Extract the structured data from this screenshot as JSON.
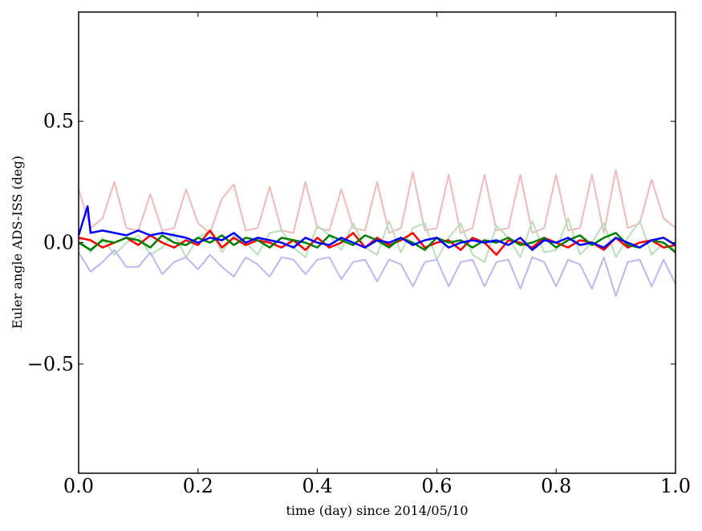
{
  "chart_data": {
    "type": "line",
    "xlabel": "time (day) since 2014/05/10",
    "ylabel": "Euler angle ADS-ISS (deg)",
    "xlim": [
      0.0,
      1.0
    ],
    "ylim": [
      -0.95,
      0.95
    ],
    "x_ticks": [
      "0.0",
      "0.2",
      "0.4",
      "0.6",
      "0.8",
      "1.0"
    ],
    "y_ticks": [
      "−0.5",
      "0.0",
      "0.5"
    ],
    "y_tick_values": [
      -0.5,
      0.0,
      0.5
    ],
    "grid": false,
    "x": [
      0.0,
      0.02,
      0.04,
      0.06,
      0.08,
      0.1,
      0.12,
      0.14,
      0.16,
      0.18,
      0.2,
      0.22,
      0.24,
      0.26,
      0.28,
      0.3,
      0.32,
      0.34,
      0.36,
      0.38,
      0.4,
      0.42,
      0.44,
      0.46,
      0.48,
      0.5,
      0.52,
      0.54,
      0.56,
      0.58,
      0.6,
      0.62,
      0.64,
      0.66,
      0.68,
      0.7,
      0.72,
      0.74,
      0.76,
      0.78,
      0.8,
      0.82,
      0.84,
      0.86,
      0.88,
      0.9,
      0.92,
      0.94,
      0.96,
      0.98,
      1.0
    ],
    "series": [
      {
        "color": "#f4b8b8",
        "width": 2,
        "values": [
          0.22,
          0.06,
          0.1,
          0.25,
          0.06,
          0.05,
          0.2,
          0.05,
          0.06,
          0.22,
          0.08,
          0.04,
          0.18,
          0.24,
          0.05,
          0.06,
          0.23,
          0.05,
          0.04,
          0.25,
          0.06,
          0.05,
          0.22,
          0.06,
          0.05,
          0.25,
          0.04,
          0.06,
          0.29,
          0.05,
          0.06,
          0.28,
          0.04,
          0.06,
          0.28,
          0.05,
          0.06,
          0.28,
          0.04,
          0.06,
          0.28,
          0.05,
          0.06,
          0.28,
          0.04,
          0.3,
          0.06,
          0.08,
          0.26,
          0.1,
          0.06
        ]
      },
      {
        "color": "#b8e0b8",
        "width": 2,
        "values": [
          0.02,
          -0.04,
          0.02,
          -0.05,
          0.0,
          0.03,
          -0.05,
          -0.02,
          0.04,
          -0.06,
          0.02,
          0.05,
          -0.04,
          0.03,
          0.0,
          -0.05,
          0.04,
          0.05,
          -0.02,
          -0.06,
          0.07,
          0.03,
          -0.03,
          0.08,
          -0.02,
          -0.05,
          0.09,
          -0.04,
          0.06,
          0.08,
          -0.07,
          0.02,
          0.08,
          -0.05,
          -0.08,
          0.07,
          0.02,
          -0.06,
          0.09,
          -0.04,
          -0.03,
          0.1,
          -0.05,
          0.0,
          0.08,
          -0.06,
          0.02,
          0.09,
          -0.05,
          0.0,
          -0.03
        ]
      },
      {
        "color": "#b8b8f4",
        "width": 2,
        "values": [
          -0.04,
          -0.12,
          -0.08,
          -0.03,
          -0.1,
          -0.1,
          -0.04,
          -0.13,
          -0.08,
          -0.06,
          -0.11,
          -0.05,
          -0.1,
          -0.14,
          -0.06,
          -0.09,
          -0.14,
          -0.06,
          -0.07,
          -0.13,
          -0.07,
          -0.06,
          -0.15,
          -0.08,
          -0.07,
          -0.16,
          -0.07,
          -0.09,
          -0.18,
          -0.08,
          -0.07,
          -0.18,
          -0.08,
          -0.07,
          -0.18,
          -0.08,
          -0.07,
          -0.19,
          -0.06,
          -0.08,
          -0.18,
          -0.07,
          -0.09,
          -0.19,
          -0.06,
          -0.22,
          -0.08,
          -0.07,
          -0.18,
          -0.07,
          -0.17
        ]
      },
      {
        "color": "#ff0000",
        "width": 2.5,
        "values": [
          0.02,
          0.01,
          -0.02,
          0.0,
          0.02,
          -0.01,
          0.03,
          0.0,
          -0.02,
          0.01,
          -0.01,
          0.05,
          -0.02,
          0.02,
          -0.01,
          0.01,
          0.0,
          -0.02,
          0.01,
          -0.03,
          0.02,
          -0.02,
          0.0,
          0.04,
          -0.02,
          0.02,
          -0.01,
          0.01,
          0.04,
          -0.02,
          0.0,
          0.01,
          -0.03,
          0.02,
          0.0,
          -0.05,
          0.01,
          0.0,
          -0.02,
          0.02,
          0.0,
          -0.02,
          0.01,
          0.0,
          -0.03,
          0.02,
          -0.02,
          0.0,
          0.01,
          -0.02,
          -0.01
        ]
      },
      {
        "color": "#008000",
        "width": 2.5,
        "values": [
          0.0,
          -0.03,
          0.01,
          0.0,
          0.02,
          0.01,
          -0.02,
          0.03,
          0.0,
          -0.01,
          0.02,
          0.0,
          0.03,
          -0.01,
          0.02,
          0.01,
          -0.02,
          0.02,
          0.01,
          0.0,
          -0.02,
          0.03,
          0.01,
          -0.01,
          0.03,
          0.01,
          -0.02,
          0.02,
          0.0,
          -0.03,
          0.02,
          0.0,
          0.01,
          -0.02,
          0.01,
          0.0,
          0.02,
          -0.01,
          0.0,
          0.02,
          -0.02,
          0.01,
          0.03,
          -0.01,
          0.02,
          0.04,
          -0.01,
          -0.02,
          0.01,
          0.0,
          -0.04
        ]
      },
      {
        "color": "#0000ff",
        "width": 2.5,
        "values": [
          0.03,
          0.04,
          0.05,
          0.04,
          0.03,
          0.05,
          0.03,
          0.04,
          0.03,
          0.02,
          0.0,
          0.02,
          0.01,
          0.04,
          0.0,
          0.02,
          0.01,
          0.0,
          -0.02,
          0.02,
          0.0,
          -0.01,
          0.02,
          0.0,
          -0.02,
          0.01,
          0.0,
          0.02,
          -0.01,
          0.01,
          0.02,
          -0.02,
          0.0,
          0.01,
          0.0,
          0.01,
          -0.01,
          0.02,
          -0.03,
          0.01,
          0.0,
          0.02,
          -0.01,
          0.0,
          -0.02,
          0.02,
          0.0,
          -0.02,
          0.01,
          0.02,
          -0.01
        ]
      }
    ],
    "spike": {
      "series": 5,
      "x": 0.015,
      "y": 0.15
    }
  }
}
